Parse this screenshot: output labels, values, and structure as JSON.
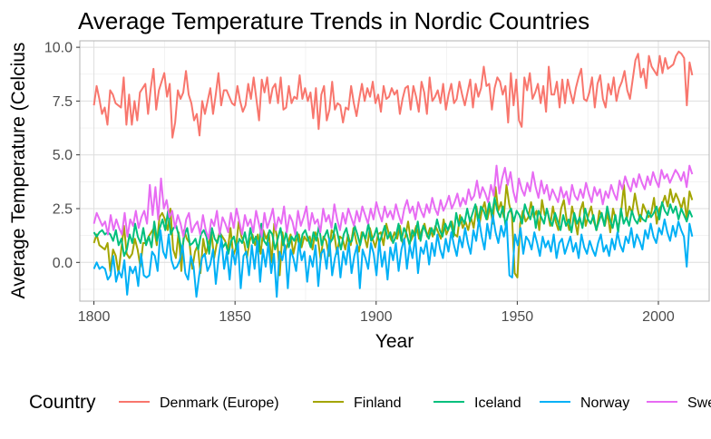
{
  "chart_data": {
    "type": "line",
    "title": "Average Temperature Trends in Nordic Countries",
    "xlabel": "Year",
    "ylabel": "Average Temperature (Celcius",
    "xlim": [
      1795,
      2018
    ],
    "ylim": [
      -1.8,
      10.3
    ],
    "x_ticks": [
      1800,
      1850,
      1900,
      1950,
      2000
    ],
    "x_tick_labels": [
      "1800",
      "1850",
      "1900",
      "1950",
      "2000"
    ],
    "y_ticks": [
      0,
      2.5,
      5,
      7.5,
      10
    ],
    "y_tick_labels": [
      "0.0",
      "2.5",
      "5.0",
      "7.5",
      "10.0"
    ],
    "grid": true,
    "legend": {
      "title": "Country",
      "position": "bottom"
    },
    "x_start": 1800,
    "x_end": 2012,
    "series": [
      {
        "name": "Denmark (Europe)",
        "color": "#F8766D",
        "values": [
          7.3,
          8.2,
          7.6,
          6.9,
          7.2,
          6.4,
          8.0,
          7.8,
          7.4,
          7.3,
          7.2,
          8.6,
          6.4,
          7.8,
          6.4,
          7.5,
          6.6,
          7.9,
          8.1,
          8.3,
          6.9,
          8.1,
          9.0,
          7.1,
          8.0,
          8.4,
          8.8,
          7.7,
          8.3,
          5.8,
          6.5,
          8.0,
          7.6,
          7.9,
          8.9,
          7.8,
          7.4,
          6.6,
          6.9,
          5.9,
          7.5,
          6.9,
          7.5,
          8.1,
          6.9,
          7.8,
          8.8,
          7.3,
          8.0,
          8.0,
          7.7,
          7.4,
          7.3,
          8.2,
          7.5,
          7.0,
          7.3,
          8.3,
          7.6,
          8.6,
          7.6,
          6.6,
          8.5,
          7.9,
          8.6,
          7.4,
          8.1,
          8.3,
          7.4,
          8.6,
          7.1,
          7.2,
          8.2,
          7.4,
          7.7,
          7.6,
          8.7,
          7.6,
          8.1,
          7.5,
          7.9,
          6.7,
          8.1,
          6.2,
          7.8,
          8.2,
          6.6,
          7.1,
          8.4,
          7.1,
          7.4,
          7.3,
          6.5,
          7.2,
          7.1,
          8.2,
          7.4,
          6.8,
          7.6,
          8.3,
          7.5,
          8.1,
          7.7,
          8.4,
          7.4,
          7.8,
          7.0,
          8.2,
          7.6,
          7.7,
          8.1,
          7.8,
          8.0,
          6.9,
          7.6,
          8.1,
          8.2,
          7.1,
          8.2,
          7.7,
          7.0,
          8.4,
          7.9,
          6.9,
          8.6,
          7.5,
          7.7,
          8.0,
          7.4,
          8.3,
          7.1,
          7.8,
          8.3,
          7.4,
          7.6,
          8.4,
          7.8,
          7.3,
          7.9,
          8.5,
          7.2,
          8.3,
          7.7,
          8.1,
          9.1,
          8.2,
          8.3,
          7.1,
          8.1,
          8.6,
          8.4,
          7.8,
          8.2,
          6.5,
          8.8,
          7.3,
          8.5,
          6.6,
          6.3,
          8.6,
          8.0,
          8.8,
          7.6,
          7.9,
          8.3,
          7.4,
          8.2,
          7.0,
          9.1,
          7.8,
          7.8,
          8.4,
          7.2,
          8.5,
          7.4,
          8.5,
          7.9,
          7.4,
          8.1,
          8.6,
          9.0,
          7.6,
          7.5,
          7.9,
          8.6,
          7.2,
          8.3,
          8.7,
          7.6,
          7.2,
          8.3,
          7.8,
          8.6,
          7.5,
          8.1,
          8.4,
          8.9,
          8.0,
          7.6,
          8.5,
          9.4,
          9.7,
          8.6,
          9.0,
          8.1,
          9.6,
          9.1,
          8.9,
          8.7,
          9.6,
          8.8,
          9.5,
          9.0,
          9.1,
          9.2,
          9.6,
          9.8,
          9.7,
          9.5,
          7.3,
          9.3,
          8.7
        ]
      },
      {
        "name": "Finland",
        "color": "#A3A500",
        "values": [
          0.9,
          1.3,
          0.8,
          0.7,
          0.6,
          0.9,
          -0.4,
          0.6,
          0.3,
          -0.5,
          0.6,
          1.7,
          0.4,
          0.2,
          0.4,
          1.1,
          0.6,
          -0.2,
          0.9,
          0.9,
          1.2,
          1.4,
          1.6,
          0.8,
          2.1,
          2.3,
          2.0,
          1.5,
          2.5,
          0.6,
          0.2,
          1.4,
          -0.4,
          1.5,
          1.1,
          0.9,
          -0.3,
          0.5,
          0.8,
          -0.5,
          1.1,
          0.4,
          0.9,
          1.4,
          0.2,
          0.9,
          1.4,
          1.2,
          1.0,
          0.6,
          1.6,
          0.3,
          0.7,
          1.9,
          1.2,
          0.9,
          0.2,
          1.0,
          1.3,
          0.8,
          1.3,
          0.4,
          1.5,
          1.1,
          1.4,
          0.0,
          1.8,
          1.2,
          -0.6,
          1.4,
          0.5,
          0.9,
          1.3,
          0.4,
          1.0,
          1.3,
          0.7,
          1.2,
          1.0,
          1.2,
          0.6,
          1.4,
          1.1,
          0.1,
          1.2,
          1.0,
          0.3,
          1.5,
          1.3,
          0.4,
          1.2,
          1.1,
          0.6,
          1.3,
          0.8,
          1.6,
          1.0,
          0.5,
          1.4,
          1.2,
          0.7,
          1.6,
          1.1,
          0.7,
          1.3,
          1.4,
          0.8,
          1.8,
          1.3,
          1.0,
          1.4,
          1.1,
          1.7,
          0.9,
          1.2,
          1.9,
          1.0,
          1.3,
          1.7,
          1.1,
          1.5,
          1.8,
          1.2,
          1.6,
          1.2,
          1.7,
          1.4,
          1.1,
          2.0,
          1.3,
          1.6,
          1.9,
          1.3,
          1.2,
          2.2,
          1.6,
          1.9,
          1.5,
          2.1,
          1.6,
          2.6,
          1.7,
          2.4,
          2.8,
          2.0,
          2.6,
          1.8,
          3.5,
          2.4,
          2.8,
          2.1,
          3.6,
          2.7,
          2.2,
          -0.5,
          -0.7,
          1.8,
          2.4,
          1.9,
          2.1,
          2.8,
          2.1,
          2.4,
          1.5,
          2.9,
          2.2,
          2.4,
          1.7,
          2.6,
          1.9,
          1.5,
          2.5,
          2.9,
          2.0,
          1.5,
          2.6,
          2.0,
          1.3,
          2.4,
          2.8,
          1.7,
          2.2,
          2.6,
          1.9,
          1.5,
          2.4,
          2.1,
          1.7,
          2.3,
          1.4,
          2.5,
          2.0,
          1.6,
          2.4,
          3.6,
          2.0,
          2.6,
          2.3,
          3.2,
          2.5,
          1.9,
          2.7,
          2.4,
          2.1,
          2.3,
          3.0,
          1.8,
          2.5,
          2.7,
          3.1,
          2.6,
          3.4,
          2.8,
          3.2,
          2.9,
          2.5,
          3.0,
          2.0,
          3.3,
          2.9
        ]
      },
      {
        "name": "Iceland",
        "color": "#00BF7D",
        "values": [
          1.4,
          1.2,
          1.4,
          1.5,
          1.3,
          1.4,
          1.3,
          1.0,
          1.5,
          0.8,
          1.1,
          0.3,
          0.6,
          1.3,
          0.9,
          1.8,
          1.2,
          0.9,
          1.6,
          0.8,
          1.2,
          0.7,
          1.9,
          1.0,
          1.6,
          2.0,
          1.5,
          2.4,
          1.3,
          1.6,
          1.7,
          1.2,
          0.5,
          1.3,
          1.6,
          0.8,
          0.9,
          1.1,
          0.6,
          1.3,
          1.5,
          1.2,
          0.4,
          1.6,
          1.1,
          0.9,
          1.4,
          0.7,
          0.9,
          0.4,
          1.0,
          1.2,
          0.6,
          1.1,
          0.9,
          1.4,
          0.7,
          1.6,
          0.9,
          1.2,
          0.5,
          1.8,
          1.0,
          0.8,
          1.5,
          1.3,
          0.6,
          1.1,
          1.6,
          0.8,
          1.4,
          0.7,
          1.2,
          1.0,
          1.4,
          0.6,
          1.3,
          1.5,
          1.1,
          0.7,
          1.4,
          1.0,
          1.7,
          0.8,
          1.2,
          1.5,
          0.9,
          1.1,
          1.8,
          1.2,
          0.6,
          1.3,
          1.6,
          0.9,
          1.0,
          1.7,
          1.3,
          0.8,
          1.4,
          1.1,
          1.8,
          1.0,
          1.2,
          1.6,
          0.9,
          1.3,
          1.7,
          1.1,
          1.4,
          0.9,
          1.2,
          1.8,
          1.0,
          1.6,
          1.3,
          0.8,
          1.5,
          1.2,
          1.9,
          1.0,
          1.7,
          1.4,
          1.1,
          1.6,
          1.3,
          2.0,
          1.5,
          1.2,
          1.8,
          1.5,
          1.9,
          1.2,
          2.3,
          1.7,
          2.1,
          1.8,
          2.5,
          1.9,
          2.3,
          2.7,
          1.9,
          2.6,
          2.4,
          2.0,
          2.8,
          2.2,
          3.0,
          2.4,
          2.1,
          2.6,
          1.7,
          2.3,
          2.5,
          1.9,
          2.4,
          2.2,
          1.8,
          2.7,
          2.3,
          2.0,
          2.6,
          1.6,
          2.4,
          2.1,
          1.8,
          2.5,
          2.0,
          1.7,
          2.3,
          1.9,
          1.5,
          2.2,
          1.7,
          2.0,
          1.4,
          2.3,
          1.8,
          2.1,
          1.6,
          2.5,
          2.0,
          1.8,
          2.2,
          1.5,
          1.9,
          2.3,
          1.7,
          2.6,
          2.0,
          1.6,
          2.2,
          1.4,
          2.5,
          1.8,
          2.1,
          1.7,
          2.4,
          2.0,
          1.8,
          2.2,
          2.0,
          1.9,
          2.4,
          2.1,
          2.3,
          2.6,
          2.0,
          2.8,
          2.4,
          2.2,
          2.7,
          2.3,
          2.6,
          2.0,
          2.5,
          2.2,
          1.9,
          2.4,
          2.1
        ]
      },
      {
        "name": "Norway",
        "color": "#00B0F6",
        "values": [
          -0.3,
          0.0,
          -0.3,
          -0.2,
          -0.3,
          -0.8,
          -0.6,
          0.3,
          -0.9,
          -0.4,
          -0.7,
          0.1,
          -1.5,
          -0.2,
          -0.5,
          -0.2,
          -1.1,
          0.4,
          -0.6,
          -0.7,
          -0.6,
          0.5,
          0.3,
          -0.4,
          1.5,
          0.5,
          0.2,
          1.3,
          0.1,
          -0.3,
          -0.2,
          0.1,
          0.8,
          -0.5,
          -0.8,
          0.3,
          -0.2,
          -1.6,
          -0.6,
          0.2,
          0.4,
          -0.4,
          -0.1,
          0.6,
          -1.0,
          0.2,
          1.1,
          -0.3,
          0.5,
          -0.8,
          0.6,
          -0.1,
          0.9,
          -1.2,
          0.3,
          0.5,
          -0.6,
          0.8,
          -0.3,
          1.0,
          -0.9,
          0.6,
          -0.2,
          0.9,
          -0.5,
          0.4,
          -1.6,
          0.5,
          0.1,
          0.8,
          -1.2,
          0.6,
          0.2,
          -0.4,
          0.9,
          0.1,
          0.5,
          -0.9,
          0.3,
          -0.2,
          0.8,
          -1.1,
          0.4,
          0.6,
          -0.3,
          1.1,
          -0.6,
          0.2,
          0.7,
          -0.7,
          0.5,
          -0.1,
          0.9,
          -0.5,
          0.3,
          0.8,
          -1.2,
          0.6,
          0.2,
          -0.3,
          0.9,
          0.4,
          -0.6,
          1.0,
          -0.2,
          0.5,
          -0.8,
          0.7,
          0.1,
          0.9,
          -0.4,
          0.6,
          1.1,
          -0.3,
          0.8,
          0.2,
          1.2,
          -0.5,
          0.7,
          0.4,
          1.0,
          -0.1,
          0.9,
          0.3,
          1.3,
          0.6,
          0.2,
          1.1,
          0.5,
          1.4,
          0.8,
          0.3,
          1.2,
          0.7,
          1.6,
          0.9,
          0.4,
          1.5,
          1.0,
          2.0,
          1.2,
          0.6,
          1.8,
          1.1,
          2.2,
          1.4,
          0.9,
          1.7,
          1.2,
          1.9,
          -0.6,
          -0.7,
          1.3,
          0.8,
          1.6,
          0.4,
          1.2,
          1.0,
          0.6,
          1.4,
          0.9,
          0.3,
          1.2,
          0.7,
          1.0,
          0.5,
          1.3,
          0.2,
          0.9,
          1.1,
          0.4,
          0.8,
          1.2,
          0.5,
          0.9,
          0.2,
          1.3,
          0.7,
          0.4,
          1.0,
          0.6,
          0.3,
          0.9,
          1.3,
          0.5,
          0.8,
          0.3,
          1.1,
          0.6,
          1.4,
          0.8,
          0.5,
          1.2,
          0.9,
          1.6,
          0.7,
          1.3,
          1.0,
          0.6,
          1.5,
          1.1,
          1.8,
          1.2,
          0.9,
          1.6,
          1.3,
          2.0,
          1.4,
          1.0,
          1.7,
          1.2,
          1.9,
          1.5,
          1.2,
          -0.2,
          1.8,
          1.2
        ]
      },
      {
        "name": "Sweden",
        "color": "#E76BF3",
        "values": [
          1.8,
          2.3,
          2.0,
          1.7,
          1.9,
          1.3,
          2.2,
          1.5,
          2.0,
          1.6,
          1.3,
          2.3,
          1.2,
          2.0,
          1.7,
          2.4,
          1.6,
          2.1,
          2.4,
          1.8,
          3.6,
          2.2,
          3.5,
          2.0,
          3.9,
          2.5,
          2.9,
          2.1,
          2.4,
          1.6,
          2.2,
          1.8,
          1.2,
          2.0,
          2.3,
          1.4,
          1.7,
          1.9,
          1.3,
          2.2,
          1.5,
          1.1,
          2.0,
          1.7,
          2.4,
          1.3,
          2.1,
          1.8,
          1.4,
          2.3,
          1.6,
          2.5,
          1.9,
          1.3,
          2.2,
          1.7,
          2.0,
          1.4,
          2.4,
          1.8,
          1.2,
          2.3,
          1.6,
          2.0,
          2.5,
          1.5,
          2.1,
          1.8,
          2.6,
          1.4,
          2.2,
          1.9,
          1.3,
          2.4,
          1.7,
          2.1,
          2.6,
          1.5,
          2.3,
          1.8,
          2.0,
          1.4,
          2.5,
          1.9,
          2.2,
          1.6,
          2.7,
          2.0,
          1.5,
          2.3,
          1.8,
          2.5,
          2.1,
          1.7,
          2.4,
          1.9,
          2.6,
          2.2,
          1.8,
          2.5,
          2.0,
          2.8,
          2.3,
          1.9,
          2.6,
          2.1,
          2.4,
          2.0,
          2.7,
          2.2,
          1.8,
          2.5,
          2.9,
          2.3,
          2.6,
          2.0,
          2.8,
          2.4,
          2.1,
          2.7,
          2.3,
          3.0,
          2.5,
          2.2,
          2.9,
          2.4,
          2.7,
          3.1,
          2.5,
          2.8,
          3.2,
          2.6,
          3.0,
          2.7,
          3.4,
          2.9,
          3.1,
          3.8,
          3.0,
          3.5,
          3.2,
          2.8,
          3.6,
          3.1,
          4.5,
          3.2,
          3.9,
          4.4,
          3.6,
          4.2,
          3.3,
          2.8,
          3.9,
          3.4,
          3.1,
          3.7,
          3.3,
          4.2,
          3.5,
          3.0,
          3.8,
          3.2,
          3.6,
          2.9,
          3.4,
          3.1,
          2.8,
          3.5,
          3.0,
          3.3,
          2.7,
          3.6,
          3.1,
          2.9,
          3.4,
          3.0,
          3.7,
          3.2,
          2.8,
          3.5,
          3.1,
          3.4,
          2.7,
          3.3,
          3.0,
          3.6,
          3.2,
          2.9,
          3.8,
          3.4,
          4.0,
          3.6,
          3.3,
          3.9,
          3.5,
          4.1,
          3.7,
          3.4,
          4.0,
          3.6,
          4.2,
          3.8,
          3.5,
          4.3,
          3.9,
          4.1,
          3.7,
          4.0,
          4.3,
          4.1,
          3.8,
          4.2,
          3.5,
          4.5,
          4.1
        ]
      }
    ]
  }
}
